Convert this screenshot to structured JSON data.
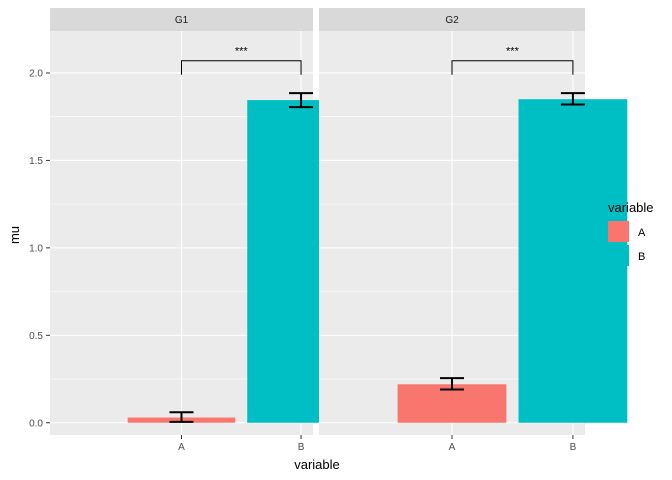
{
  "chart_data": {
    "type": "bar",
    "facets": [
      {
        "label": "G1",
        "categories": [
          "A",
          "B"
        ],
        "values": [
          0.03,
          1.845
        ],
        "error_low": [
          0.005,
          1.805
        ],
        "error_high": [
          0.06,
          1.885
        ],
        "significance": {
          "from": "A",
          "to": "B",
          "label": "***",
          "y": 2.0
        }
      },
      {
        "label": "G2",
        "categories": [
          "A",
          "B"
        ],
        "values": [
          0.22,
          1.85
        ],
        "error_low": [
          0.19,
          1.82
        ],
        "error_high": [
          0.255,
          1.885
        ],
        "significance": {
          "from": "A",
          "to": "B",
          "label": "***",
          "y": 2.0
        }
      }
    ],
    "xlabel": "variable",
    "ylabel": "mu",
    "ylim": [
      -0.07,
      2.24
    ],
    "yticks": [
      0.0,
      0.5,
      1.0,
      1.5,
      2.0
    ],
    "ytick_labels": [
      "0.0",
      "0.5",
      "1.0",
      "1.5",
      "2.0"
    ],
    "grid": true,
    "legend": {
      "title": "variable",
      "placement": "right",
      "entries": [
        {
          "label": "A",
          "color": "#F8766D"
        },
        {
          "label": "B",
          "color": "#00BFC4"
        }
      ]
    }
  },
  "colors": {
    "panel_background": "#EBEBEB",
    "strip_background": "#D9D9D9",
    "grid": "#FFFFFF"
  }
}
